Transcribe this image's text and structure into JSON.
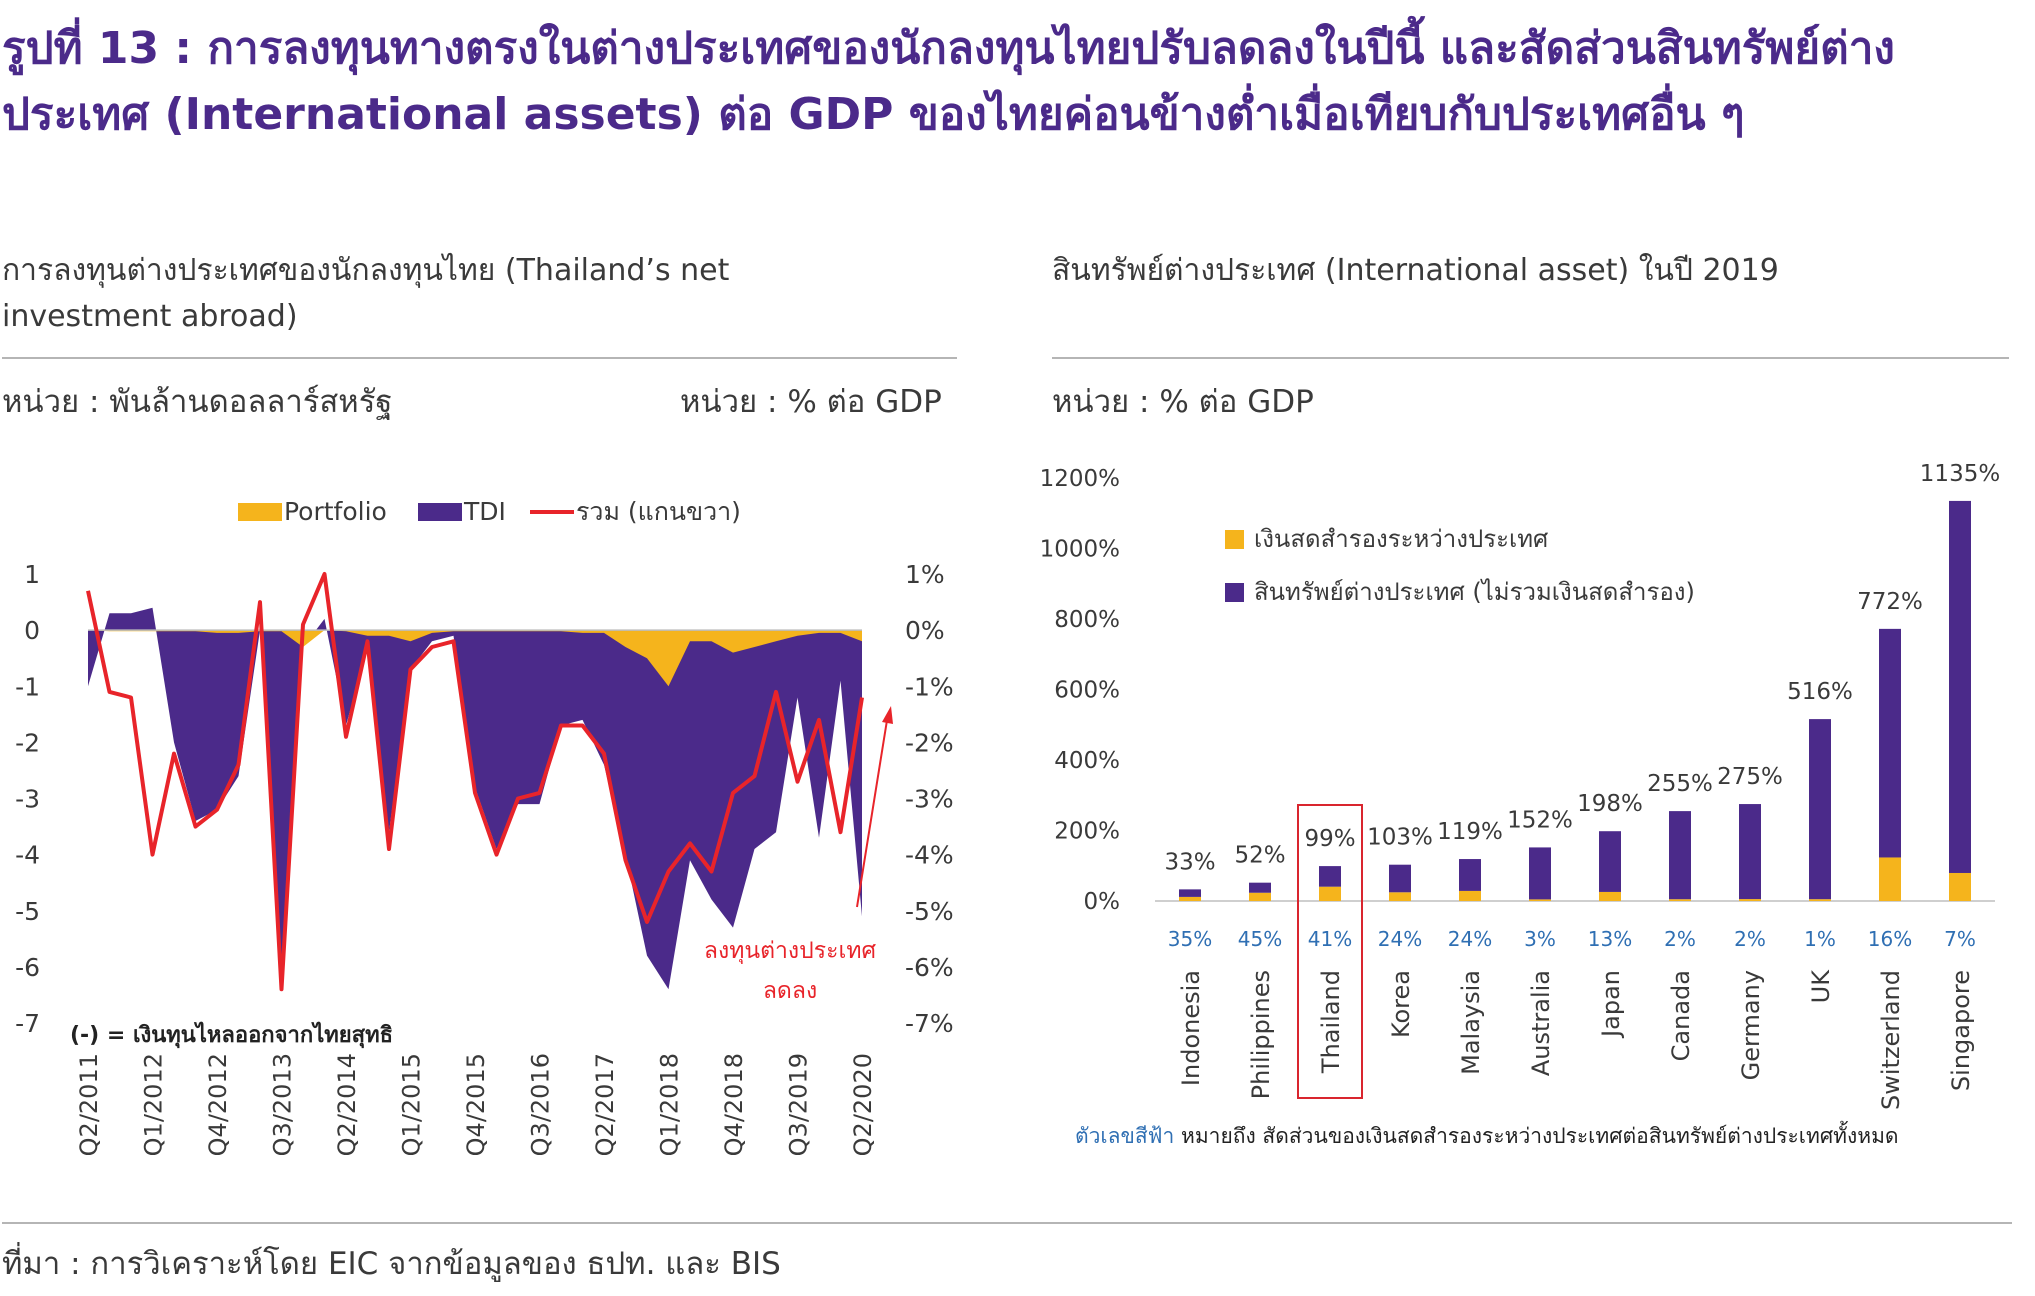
{
  "title": "รูปที่ 13 : การลงทุนทางตรงในต่างประเทศของนักลงทุนไทยปรับลดลงในปีนี้ และสัดส่วนสินทรัพย์ต่างประเทศ (International assets) ต่อ GDP ของไทยค่อนข้างต่ำเมื่อเทียบกับประเทศอื่น ๆ",
  "left_panel": {
    "subtitle": "การลงทุนต่างประเทศของนักลงทุนไทย (Thailand’s net investment abroad)",
    "unit_left": "หน่วย : พันล้านดอลลาร์สหรัฐ",
    "unit_right": "หน่วย : % ต่อ GDP",
    "footnote": "(-) = เงินทุนไหลออกจากไทยสุทธิ",
    "annotation": [
      "ลงทุนต่างประเทศ",
      "ลดลง"
    ]
  },
  "right_panel": {
    "subtitle": "สินทรัพย์ต่างประเทศ (International asset) ในปี 2019",
    "unit": "หน่วย : % ต่อ GDP",
    "note_blue": "ตัวเลขสีฟ้า",
    "note_rest": " หมายถึง สัดส่วนของเงินสดสำรองระหว่างประเทศต่อสินทรัพย์ต่างประเทศทั้งหมด"
  },
  "source": "ที่มา : การวิเคราะห์โดย EIC จากข้อมูลของ ธปท. และ BIS",
  "colors": {
    "purple": "#4b2a8a",
    "orange": "#f5b41c",
    "red": "#e8242a",
    "blue": "#2f6fb3",
    "highlight": "#d9252e"
  },
  "chart_data": [
    {
      "type": "area",
      "legend": [
        {
          "name": "Portfolio",
          "color": "#f5b41c"
        },
        {
          "name": "TDI",
          "color": "#4b2a8a"
        },
        {
          "name": "รวม (แกนขวา)",
          "color": "#e8242a"
        }
      ],
      "legend_placement": "top-center",
      "ylim_left": [
        -7,
        1
      ],
      "ylim_right": [
        -7,
        1
      ],
      "left_ticks": [
        "1",
        "0",
        "-1",
        "-2",
        "-3",
        "-4",
        "-5",
        "-6",
        "-7"
      ],
      "right_ticks": [
        "1%",
        "0%",
        "-1%",
        "-2%",
        "-3%",
        "-4%",
        "-5%",
        "-6%",
        "-7%"
      ],
      "x_ticks": [
        "Q2/2011",
        "Q1/2012",
        "Q4/2012",
        "Q3/2013",
        "Q2/2014",
        "Q1/2015",
        "Q4/2015",
        "Q3/2016",
        "Q2/2017",
        "Q1/2018",
        "Q4/2018",
        "Q3/2019",
        "Q2/2020"
      ],
      "x_quarters": [
        "Q2/2011",
        "Q3/2011",
        "Q4/2011",
        "Q1/2012",
        "Q2/2012",
        "Q3/2012",
        "Q4/2012",
        "Q1/2013",
        "Q2/2013",
        "Q3/2013",
        "Q4/2013",
        "Q1/2014",
        "Q2/2014",
        "Q3/2014",
        "Q4/2014",
        "Q1/2015",
        "Q2/2015",
        "Q3/2015",
        "Q4/2015",
        "Q1/2016",
        "Q2/2016",
        "Q3/2016",
        "Q4/2016",
        "Q1/2017",
        "Q2/2017",
        "Q3/2017",
        "Q4/2017",
        "Q1/2018",
        "Q2/2018",
        "Q3/2018",
        "Q4/2018",
        "Q1/2019",
        "Q2/2019",
        "Q3/2019",
        "Q4/2019",
        "Q1/2020",
        "Q2/2020"
      ],
      "series": [
        {
          "name": "TDI",
          "values": [
            -1.0,
            0.3,
            0.3,
            0.4,
            -2.0,
            -3.4,
            -3.2,
            -2.6,
            0.0,
            -6.3,
            -0.3,
            0.2,
            -1.7,
            -0.3,
            -3.6,
            -0.7,
            -0.2,
            -0.1,
            -2.8,
            -3.9,
            -3.1,
            -3.1,
            -1.7,
            -1.6,
            -2.4,
            -4.0,
            -5.8,
            -6.4,
            -4.1,
            -4.8,
            -5.3,
            -3.9,
            -3.6,
            -1.2,
            -3.7,
            -0.9,
            -5.1
          ]
        },
        {
          "name": "Portfolio",
          "values": [
            0.0,
            -0.02,
            -0.02,
            -0.02,
            -0.02,
            -0.02,
            -0.05,
            -0.05,
            -0.02,
            -0.02,
            -0.3,
            0.0,
            -0.02,
            -0.1,
            -0.1,
            -0.2,
            -0.05,
            -0.02,
            -0.02,
            -0.02,
            -0.02,
            -0.02,
            -0.02,
            -0.05,
            -0.05,
            -0.3,
            -0.5,
            -1.0,
            -0.2,
            -0.2,
            -0.4,
            -0.3,
            -0.2,
            -0.1,
            -0.05,
            -0.05,
            -0.2
          ]
        },
        {
          "name": "รวม (แกนขวา)",
          "values": [
            0.7,
            -1.1,
            -1.2,
            -4.0,
            -2.2,
            -3.5,
            -3.2,
            -2.4,
            0.5,
            -6.4,
            0.1,
            1.0,
            -1.9,
            -0.2,
            -3.9,
            -0.7,
            -0.3,
            -0.2,
            -2.9,
            -4.0,
            -3.0,
            -2.9,
            -1.7,
            -1.7,
            -2.2,
            -4.1,
            -5.2,
            -4.3,
            -3.8,
            -4.3,
            -2.9,
            -2.6,
            -1.1,
            -2.7,
            -1.6,
            -3.6,
            -1.2
          ]
        }
      ]
    },
    {
      "type": "bar",
      "stacked": true,
      "categories": [
        "Indonesia",
        "Philippines",
        "Thailand",
        "Korea",
        "Malaysia",
        "Australia",
        "Japan",
        "Canada",
        "Germany",
        "UK",
        "Switzerland",
        "Singapore"
      ],
      "highlight": "Thailand",
      "ylim": [
        0,
        1200
      ],
      "y_ticks": [
        "1200%",
        "1000%",
        "800%",
        "600%",
        "400%",
        "200%",
        "0%"
      ],
      "legend": [
        {
          "name": "เงินสดสำรองระหว่างประเทศ",
          "color": "#f5b41c"
        },
        {
          "name": "สินทรัพย์ต่างประเทศ (ไม่รวมเงินสดสำรอง)",
          "color": "#4b2a8a"
        }
      ],
      "legend_placement": "top-left",
      "totals": [
        33,
        52,
        99,
        103,
        119,
        152,
        198,
        255,
        275,
        516,
        772,
        1135
      ],
      "total_labels": [
        "33%",
        "52%",
        "99%",
        "103%",
        "119%",
        "152%",
        "198%",
        "255%",
        "275%",
        "516%",
        "772%",
        "1135%"
      ],
      "reserve_share_labels": [
        "35%",
        "45%",
        "41%",
        "24%",
        "24%",
        "3%",
        "13%",
        "2%",
        "2%",
        "1%",
        "16%",
        "7%"
      ],
      "series": [
        {
          "name": "เงินสดสำรองระหว่างประเทศ",
          "values": [
            11.6,
            23.4,
            40.6,
            24.7,
            28.6,
            4.6,
            25.7,
            5.1,
            5.5,
            5.2,
            123.5,
            79.5
          ]
        },
        {
          "name": "สินทรัพย์ต่างประเทศ (ไม่รวมเงินสดสำรอง)",
          "values": [
            21.4,
            28.6,
            58.4,
            78.3,
            90.4,
            147.4,
            172.3,
            249.9,
            269.5,
            510.8,
            648.5,
            1055.5
          ]
        }
      ]
    }
  ]
}
